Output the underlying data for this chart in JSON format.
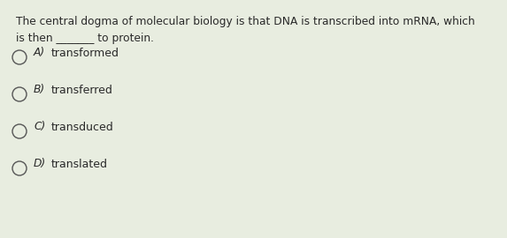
{
  "background_color": "#e8ede0",
  "question_line1": "The central dogma of molecular biology is that DNA is transcribed into mRNA, which",
  "question_line2": "is then _______ to protein.",
  "options": [
    {
      "label": "A)",
      "text": "transformed"
    },
    {
      "label": "B)",
      "text": "transferred"
    },
    {
      "label": "C)",
      "text": "transduced"
    },
    {
      "label": "D)",
      "text": "translated"
    }
  ],
  "text_color": "#2a2a2a",
  "circle_color": "#555555",
  "question_fontsize": 8.8,
  "option_fontsize": 9.0,
  "label_fontsize": 8.8
}
